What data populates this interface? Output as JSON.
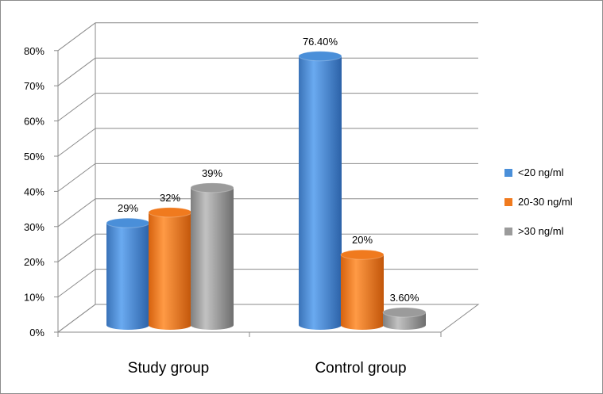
{
  "chart_data": {
    "type": "bar",
    "categories": [
      "Study group",
      "Control group"
    ],
    "series": [
      {
        "name": "<20 ng/ml",
        "values": [
          29,
          76.4
        ],
        "labels": [
          "29%",
          "76.40%"
        ],
        "color": "#4a8fd9"
      },
      {
        "name": "20-30 ng/ml",
        "values": [
          32,
          20
        ],
        "labels": [
          "32%",
          "20%"
        ],
        "color": "#f07a1e"
      },
      {
        "name": ">30 ng/ml",
        "values": [
          39,
          3.6
        ],
        "labels": [
          "39%",
          "3.60%"
        ],
        "color": "#9b9b9b"
      }
    ],
    "yticks": [
      "0%",
      "10%",
      "20%",
      "30%",
      "40%",
      "50%",
      "60%",
      "70%",
      "80%"
    ],
    "ylim": [
      0,
      80
    ],
    "style": "3d-cylinder",
    "grid": true,
    "legend": "right"
  }
}
